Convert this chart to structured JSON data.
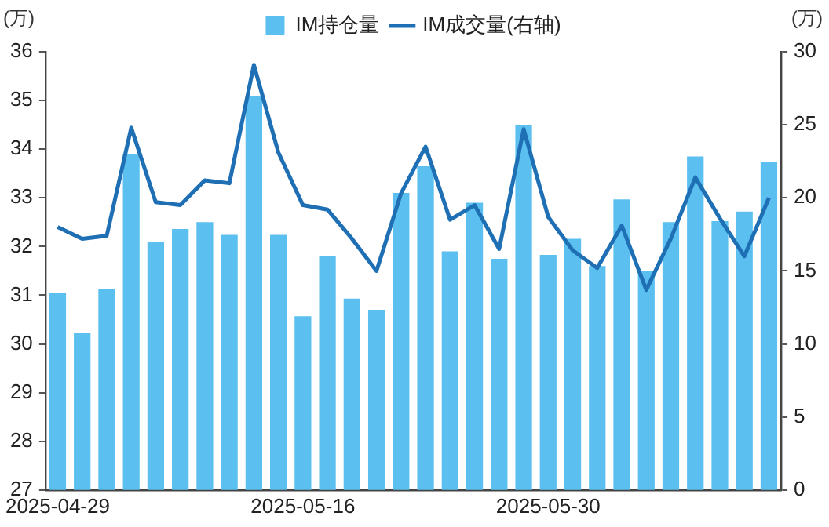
{
  "chart_data": {
    "type": "bar",
    "ylabel": "(万)",
    "y2label": "(万)",
    "categories": [
      "2025-04-29",
      null,
      null,
      null,
      null,
      null,
      null,
      null,
      null,
      null,
      "2025-05-16",
      null,
      null,
      null,
      null,
      null,
      null,
      null,
      null,
      null,
      "2025-05-30",
      null,
      null,
      null,
      null,
      null,
      null,
      null,
      null,
      null
    ],
    "series": [
      {
        "name": "IM持仓量",
        "color": "#5bc0f0",
        "values": [
          31.05,
          30.23,
          31.12,
          33.9,
          32.1,
          32.36,
          32.5,
          32.24,
          35.1,
          32.24,
          30.57,
          31.8,
          30.93,
          30.7,
          33.1,
          33.65,
          31.9,
          32.9,
          31.75,
          34.5,
          31.83,
          32.16,
          31.6,
          32.97,
          31.5,
          32.5,
          33.85,
          32.52,
          32.72,
          33.74
        ]
      },
      {
        "name": "IM成交量(右轴)",
        "type": "line",
        "axis": "y2",
        "color": "#1f6fb5",
        "values": [
          18.0,
          17.2,
          17.4,
          24.8,
          19.7,
          19.5,
          21.2,
          21.0,
          29.1,
          23.1,
          19.5,
          19.2,
          17.2,
          15.0,
          20.3,
          23.5,
          18.5,
          19.5,
          16.5,
          24.7,
          18.7,
          16.4,
          15.2,
          18.1,
          13.7,
          17.2,
          21.4,
          18.6,
          16.0,
          20.0
        ]
      }
    ],
    "ylim": [
      27,
      36
    ],
    "yticks": [
      27,
      28,
      29,
      30,
      31,
      32,
      33,
      34,
      35,
      36
    ],
    "y2lim": [
      0,
      30
    ],
    "y2ticks": [
      0,
      5,
      10,
      15,
      20,
      25,
      30
    ],
    "legend": "top",
    "grid": false,
    "marker": "none",
    "line_style": "solid"
  }
}
